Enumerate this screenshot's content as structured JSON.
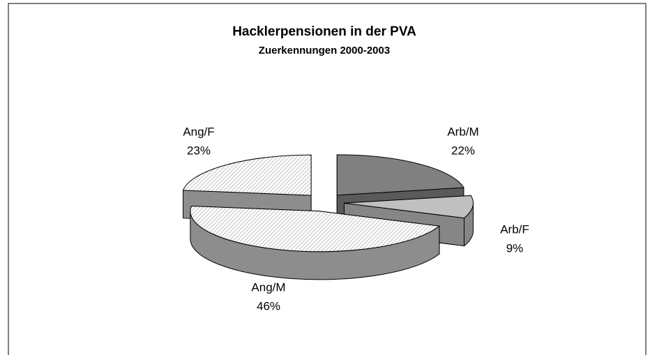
{
  "chart_data": {
    "type": "pie3d",
    "title": "Hacklerpensionen in der PVA",
    "subtitle": "Zuerkennungen 2000-2003",
    "categories": [
      "Arb/M",
      "Arb/F",
      "Ang/M",
      "Ang/F"
    ],
    "values": [
      22,
      9,
      46,
      23
    ],
    "value_labels": [
      "22%",
      "9%",
      "46%",
      "23%"
    ],
    "colors": [
      "#808080",
      "#c0c0c0",
      "#e6e6e6",
      "#ececec"
    ]
  }
}
